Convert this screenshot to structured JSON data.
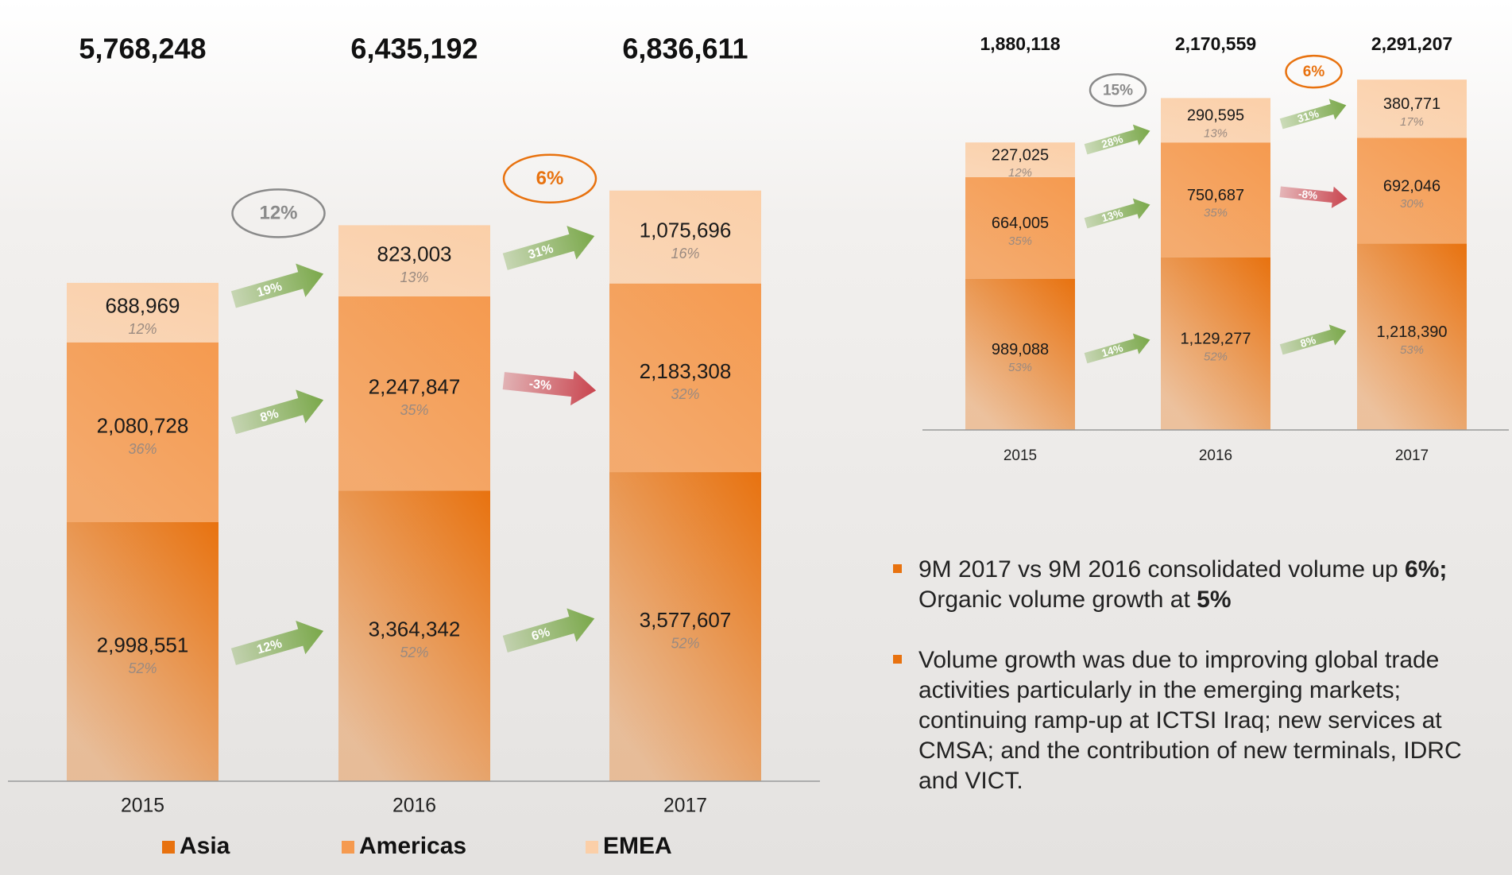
{
  "chart_data": [
    {
      "type": "bar",
      "stacked": true,
      "categories": [
        "2015",
        "2016",
        "2017"
      ],
      "series": [
        {
          "name": "Asia",
          "color": "#e8720f",
          "values": [
            2998551,
            3364342,
            3577607
          ],
          "value_labels": [
            "2,998,551",
            "3,364,342",
            "3,577,607"
          ],
          "share_labels": [
            "52%",
            "52%",
            "52%"
          ],
          "growth": [
            {
              "value": 12,
              "label": "12%"
            },
            {
              "value": 6,
              "label": "6%"
            }
          ]
        },
        {
          "name": "Americas",
          "color": "#f59a4f",
          "values": [
            2080728,
            2247847,
            2183308
          ],
          "value_labels": [
            "2,080,728",
            "2,247,847",
            "2,183,308"
          ],
          "share_labels": [
            "36%",
            "35%",
            "32%"
          ],
          "growth": [
            {
              "value": 8,
              "label": "8%"
            },
            {
              "value": -3,
              "label": "-3%"
            }
          ]
        },
        {
          "name": "EMEA",
          "color": "#fbcfa8",
          "values": [
            688969,
            823003,
            1075696
          ],
          "value_labels": [
            "688,969",
            "823,003",
            "1,075,696"
          ],
          "share_labels": [
            "12%",
            "13%",
            "16%"
          ],
          "growth": [
            {
              "value": 19,
              "label": "19%"
            },
            {
              "value": 31,
              "label": "31%"
            }
          ]
        }
      ],
      "totals": [
        {
          "value": 5768248,
          "label": "5,768,248"
        },
        {
          "value": 6435192,
          "label": "6,435,192"
        },
        {
          "value": 6836611,
          "label": "6,836,611"
        }
      ],
      "overall_growth": [
        {
          "value": 12,
          "label": "12%",
          "color": "#8a8a8a"
        },
        {
          "value": 6,
          "label": "6%",
          "color": "#e8720f"
        }
      ],
      "ylim": [
        0,
        7000000
      ],
      "legend": true
    },
    {
      "type": "bar",
      "stacked": true,
      "categories": [
        "2015",
        "2016",
        "2017"
      ],
      "series": [
        {
          "name": "Asia",
          "color": "#e8720f",
          "values": [
            989088,
            1129277,
            1218390
          ],
          "value_labels": [
            "989,088",
            "1,129,277",
            "1,218,390"
          ],
          "share_labels": [
            "53%",
            "52%",
            "53%"
          ],
          "growth": [
            {
              "value": 14,
              "label": "14%"
            },
            {
              "value": 8,
              "label": "8%"
            }
          ]
        },
        {
          "name": "Americas",
          "color": "#f59a4f",
          "values": [
            664005,
            750687,
            692046
          ],
          "value_labels": [
            "664,005",
            "750,687",
            "692,046"
          ],
          "share_labels": [
            "35%",
            "35%",
            "30%"
          ],
          "growth": [
            {
              "value": 13,
              "label": "13%"
            },
            {
              "value": -8,
              "label": "-8%"
            }
          ]
        },
        {
          "name": "EMEA",
          "color": "#fbcfa8",
          "values": [
            227025,
            290595,
            380771
          ],
          "value_labels": [
            "227,025",
            "290,595",
            "380,771"
          ],
          "share_labels": [
            "12%",
            "13%",
            "17%"
          ],
          "growth": [
            {
              "value": 28,
              "label": "28%"
            },
            {
              "value": 31,
              "label": "31%"
            }
          ]
        }
      ],
      "totals": [
        {
          "value": 1880118,
          "label": "1,880,118"
        },
        {
          "value": 2170559,
          "label": "2,170,559"
        },
        {
          "value": 2291207,
          "label": "2,291,207"
        }
      ],
      "overall_growth": [
        {
          "value": 15,
          "label": "15%",
          "color": "#8a8a8a"
        },
        {
          "value": 6,
          "label": "6%",
          "color": "#e8720f"
        }
      ],
      "ylim": [
        0,
        2500000
      ],
      "legend": false
    }
  ],
  "notes": [
    [
      "9M 2017 vs 9M 2016 consolidated volume up ",
      "6%;",
      " Organic volume growth at ",
      "5%"
    ],
    [
      "Volume growth was due to improving global trade activities particularly in the emerging markets; continuing ramp-up at ICTSI Iraq; new services at CMSA; and the contribution of new terminals, IDRC and VICT."
    ]
  ]
}
